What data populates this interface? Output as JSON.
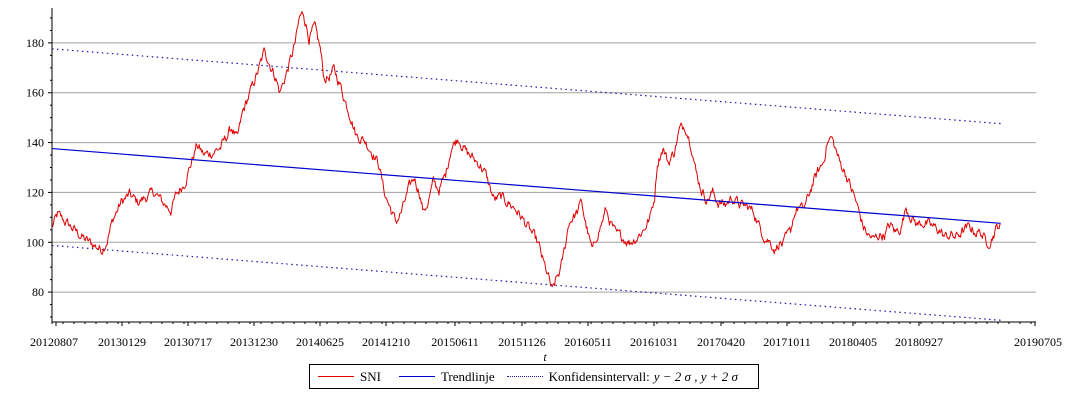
{
  "chart_data": {
    "type": "line",
    "title": "",
    "xlabel": "t",
    "ylabel": "",
    "ylim": [
      68,
      194
    ],
    "y_ticks": [
      80,
      100,
      120,
      140,
      160,
      180
    ],
    "x_tick_labels": [
      "20120807",
      "20130129",
      "20130717",
      "20131230",
      "20140625",
      "20141210",
      "20150611",
      "20151126",
      "20160511",
      "20161031",
      "20170420",
      "20171011",
      "20180405",
      "20180927",
      "20190705"
    ],
    "x_range": [
      0,
      1780
    ],
    "grid": "horizontal",
    "legend_position": "bottom-center",
    "series": [
      {
        "name": "SNI",
        "color": "#e00000",
        "style": "solid",
        "points": [
          [
            0,
            106
          ],
          [
            10,
            111
          ],
          [
            25,
            108
          ],
          [
            45,
            104
          ],
          [
            60,
            101
          ],
          [
            75,
            99
          ],
          [
            90,
            97
          ],
          [
            100,
            101
          ],
          [
            110,
            109
          ],
          [
            125,
            116
          ],
          [
            140,
            119
          ],
          [
            155,
            116
          ],
          [
            170,
            118
          ],
          [
            185,
            120
          ],
          [
            200,
            116
          ],
          [
            215,
            113
          ],
          [
            225,
            119
          ],
          [
            240,
            124
          ],
          [
            252,
            132
          ],
          [
            262,
            139
          ],
          [
            275,
            135
          ],
          [
            290,
            136
          ],
          [
            305,
            138
          ],
          [
            315,
            142
          ],
          [
            325,
            146
          ],
          [
            335,
            141
          ],
          [
            345,
            152
          ],
          [
            355,
            158
          ],
          [
            365,
            164
          ],
          [
            375,
            170
          ],
          [
            385,
            177
          ],
          [
            395,
            171
          ],
          [
            405,
            166
          ],
          [
            412,
            160
          ],
          [
            420,
            165
          ],
          [
            430,
            172
          ],
          [
            440,
            180
          ],
          [
            448,
            190
          ],
          [
            455,
            192
          ],
          [
            465,
            182
          ],
          [
            475,
            186
          ],
          [
            485,
            178
          ],
          [
            492,
            166
          ],
          [
            500,
            166
          ],
          [
            510,
            169
          ],
          [
            520,
            164
          ],
          [
            530,
            157
          ],
          [
            540,
            151
          ],
          [
            550,
            143
          ],
          [
            565,
            141
          ],
          [
            580,
            136
          ],
          [
            592,
            131
          ],
          [
            600,
            121
          ],
          [
            608,
            116
          ],
          [
            615,
            112
          ],
          [
            622,
            108
          ],
          [
            632,
            112
          ],
          [
            645,
            121
          ],
          [
            655,
            126
          ],
          [
            665,
            120
          ],
          [
            672,
            112
          ],
          [
            680,
            116
          ],
          [
            690,
            124
          ],
          [
            700,
            121
          ],
          [
            712,
            127
          ],
          [
            722,
            138
          ],
          [
            735,
            142
          ],
          [
            750,
            136
          ],
          [
            760,
            134
          ],
          [
            775,
            131
          ],
          [
            785,
            127
          ],
          [
            792,
            122
          ],
          [
            800,
            117
          ],
          [
            812,
            118
          ],
          [
            825,
            116
          ],
          [
            840,
            113
          ],
          [
            855,
            108
          ],
          [
            870,
            103
          ],
          [
            880,
            99
          ],
          [
            890,
            91
          ],
          [
            898,
            86
          ],
          [
            905,
            80
          ],
          [
            912,
            85
          ],
          [
            920,
            89
          ],
          [
            928,
            98
          ],
          [
            935,
            108
          ],
          [
            942,
            110
          ],
          [
            950,
            112
          ],
          [
            958,
            116
          ],
          [
            965,
            108
          ],
          [
            972,
            101
          ],
          [
            978,
            96
          ],
          [
            986,
            103
          ],
          [
            995,
            108
          ],
          [
            1002,
            113
          ],
          [
            1010,
            108
          ],
          [
            1020,
            103
          ],
          [
            1032,
            102
          ],
          [
            1045,
            100
          ],
          [
            1058,
            102
          ],
          [
            1070,
            105
          ],
          [
            1082,
            110
          ],
          [
            1090,
            118
          ],
          [
            1095,
            132
          ],
          [
            1105,
            138
          ],
          [
            1115,
            132
          ],
          [
            1125,
            136
          ],
          [
            1135,
            145
          ],
          [
            1145,
            147
          ],
          [
            1150,
            144
          ],
          [
            1158,
            138
          ],
          [
            1165,
            128
          ],
          [
            1175,
            121
          ],
          [
            1185,
            117
          ],
          [
            1195,
            120
          ],
          [
            1205,
            116
          ],
          [
            1218,
            115
          ],
          [
            1230,
            118
          ],
          [
            1245,
            115
          ],
          [
            1260,
            114
          ],
          [
            1270,
            112
          ],
          [
            1280,
            106
          ],
          [
            1290,
            102
          ],
          [
            1300,
            100
          ],
          [
            1308,
            97
          ],
          [
            1316,
            100
          ],
          [
            1322,
            99
          ],
          [
            1330,
            102
          ],
          [
            1336,
            104
          ],
          [
            1342,
            111
          ],
          [
            1350,
            114
          ],
          [
            1358,
            113
          ],
          [
            1365,
            116
          ],
          [
            1375,
            123
          ],
          [
            1385,
            128
          ],
          [
            1395,
            132
          ],
          [
            1402,
            140
          ],
          [
            1410,
            142
          ],
          [
            1418,
            137
          ],
          [
            1425,
            132
          ],
          [
            1435,
            128
          ],
          [
            1445,
            122
          ],
          [
            1452,
            118
          ],
          [
            1460,
            112
          ],
          [
            1468,
            106
          ],
          [
            1476,
            103
          ],
          [
            1486,
            101
          ],
          [
            1496,
            103
          ],
          [
            1506,
            103
          ],
          [
            1516,
            107
          ],
          [
            1526,
            104
          ],
          [
            1536,
            106
          ],
          [
            1545,
            114
          ],
          [
            1555,
            110
          ],
          [
            1565,
            107
          ],
          [
            1575,
            108
          ],
          [
            1585,
            107
          ],
          [
            1595,
            106
          ],
          [
            1605,
            105
          ],
          [
            1615,
            102
          ],
          [
            1625,
            103
          ],
          [
            1635,
            102
          ],
          [
            1645,
            104
          ],
          [
            1660,
            106
          ],
          [
            1672,
            104
          ],
          [
            1680,
            104
          ],
          [
            1690,
            100
          ],
          [
            1698,
            101
          ],
          [
            1705,
            104
          ],
          [
            1712,
            107
          ],
          [
            1716,
            106
          ]
        ],
        "volatility": 2.2
      },
      {
        "name": "Trendlinje",
        "color": "#0000cc",
        "style": "solid",
        "points": [
          [
            0,
            137.6
          ],
          [
            1716,
            107.6
          ]
        ]
      },
      {
        "name": "Konfidensintervall:",
        "color": "#1a1aa6",
        "style": "dotted",
        "points_upper": [
          [
            0,
            177.6
          ],
          [
            1716,
            147.6
          ]
        ],
        "points_lower": [
          [
            0,
            98.7
          ],
          [
            1716,
            68.7
          ]
        ]
      }
    ],
    "legend": [
      {
        "label": "SNI",
        "color": "#e00000",
        "style": "solid"
      },
      {
        "label": "Trendlinje",
        "color": "#0000cc",
        "style": "solid"
      },
      {
        "label": "Konfidensintervall:",
        "formula": "y − 2 σ , y + 2 σ",
        "color": "#1a1aa6",
        "style": "dotted"
      }
    ]
  }
}
